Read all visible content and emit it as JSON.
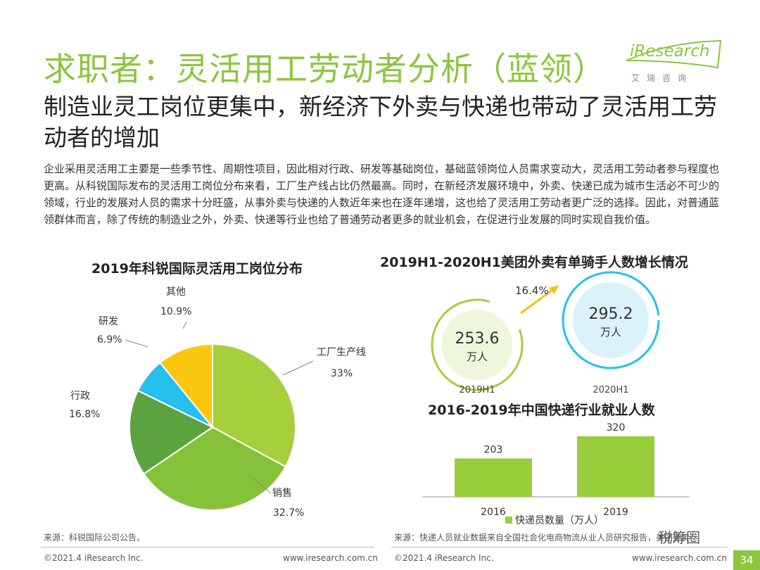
{
  "header": {
    "title": "求职者：灵活用工劳动者分析（蓝领）",
    "subtitle": "制造业灵工岗位更集中，新经济下外卖与快递也带动了灵活用工劳动者的增加",
    "body": "企业采用灵活用工主要是一些季节性、周期性项目，因此相对行政、研发等基础岗位，基础蓝领岗位人员需求变动大，灵活用工劳动者参与程度也更高。从科锐国际发布的灵活用工岗位分布来看，工厂生产线占比仍然最高。同时，在新经济发展环境中，外卖、快递已成为城市生活必不可少的领域，行业的发展对人员的需求十分旺盛，从事外卖与快递的人数近年来也在逐年递增，这也给了灵活用工劳动者更广泛的选择。因此，对普通蓝领群体而言，除了传统的制造业之外，外卖、快递等行业也给了普通劳动者更多的就业机会，在促进行业发展的同时实现自我价值。"
  },
  "logo": {
    "main": "iResearch",
    "sub": "艾瑞咨询"
  },
  "chart_data": [
    {
      "type": "pie",
      "title": "2019年科锐国际灵活用工岗位分布",
      "slices": [
        {
          "label": "工厂生产线",
          "value_label": "33%",
          "value": 33,
          "color": "#a6cf3c"
        },
        {
          "label": "销售",
          "value_label": "32.7%",
          "value": 32.7,
          "color": "#86c13a"
        },
        {
          "label": "行政",
          "value_label": "16.8%",
          "value": 16.8,
          "color": "#5aa33e"
        },
        {
          "label": "研发",
          "value_label": "6.9%",
          "value": 6.9,
          "color": "#25c0ec"
        },
        {
          "label": "其他",
          "value_label": "10.9%",
          "value": 10.9,
          "color": "#fbc60e"
        }
      ]
    },
    {
      "type": "bubble",
      "title": "2019H1-2020H1美团外卖有单骑手人数增长情况",
      "categories": [
        "2019H1",
        "2020H1"
      ],
      "values": [
        253.6,
        295.2
      ],
      "value_labels": [
        "253.6",
        "295.2"
      ],
      "unit": "万人",
      "growth_label": "16.4%"
    },
    {
      "type": "bar",
      "title": "2016-2019年中国快递行业就业人数",
      "categories": [
        "2016",
        "2019"
      ],
      "values": [
        203,
        320
      ],
      "legend": "快递员数量（万人）",
      "color": "#9acd3c"
    }
  ],
  "footer": {
    "left_source": "来源：科锐国际公司公告。",
    "right_source": "来源：快递人员就业数据来自全国社会化电商物流从业人员研究报告，美团外卖",
    "left_copyright": "©2021.4 iResearch Inc.",
    "left_url": "www.iresearch.com.cn",
    "right_copyright": "©2021.4 iResearch Inc.",
    "right_url": "www.iresearch.com.cn",
    "watermark": "税筹圈",
    "page": "34"
  }
}
